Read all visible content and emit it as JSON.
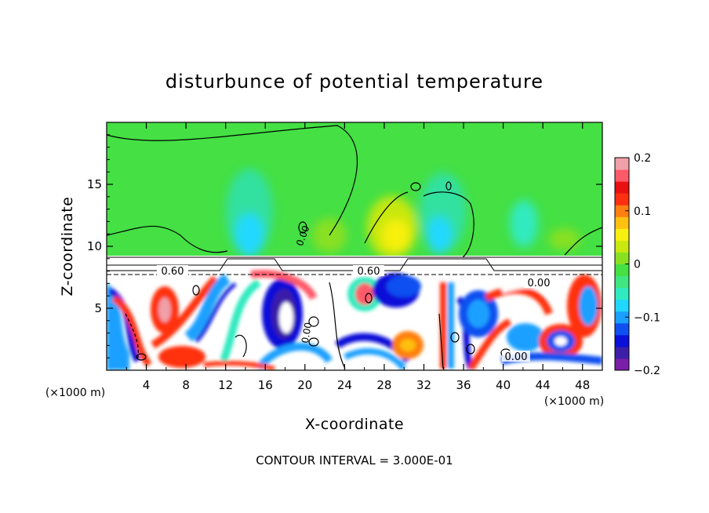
{
  "chart_data": {
    "type": "heatmap",
    "title": "disturbunce of potential temperature",
    "xlabel": "X-coordinate",
    "ylabel": "Z-coordinate",
    "x_unit_label": "(×1000 m)",
    "y_unit_label": "(×1000 m)",
    "xlim": [
      0,
      50
    ],
    "ylim": [
      0,
      20
    ],
    "x_ticks": [
      4,
      8,
      12,
      16,
      20,
      24,
      28,
      32,
      36,
      40,
      44,
      48
    ],
    "y_ticks": [
      5,
      10,
      15
    ],
    "contour_interval_text": "CONTOUR INTERVAL = 3.000E-01",
    "contour_labels": [
      "0.60",
      "0.60",
      "0.00",
      "0.00",
      "0.00",
      "0.00"
    ],
    "colorbar": {
      "min": -0.2,
      "max": 0.2,
      "ticks": [
        0.2,
        0.1,
        0,
        -0.1,
        -0.2
      ],
      "tick_labels": [
        "0.2",
        "0.1",
        "0",
        "−0.1",
        "−0.2"
      ],
      "colors": [
        "#7a1fa8",
        "#3b1fa8",
        "#0a10d8",
        "#1050f0",
        "#1aa0ff",
        "#20d8ff",
        "#30eac0",
        "#40e680",
        "#44e044",
        "#88e020",
        "#c8e810",
        "#f8f010",
        "#ffc010",
        "#ff8010",
        "#ff3010",
        "#e81010",
        "#ff5a6a",
        "#f0a0a8"
      ]
    },
    "regions": {
      "upper_background": "#44e044",
      "upper_plumes": "#30e0a0",
      "lower_layer": "turbulent mixture of red, blue, cyan, white"
    }
  }
}
